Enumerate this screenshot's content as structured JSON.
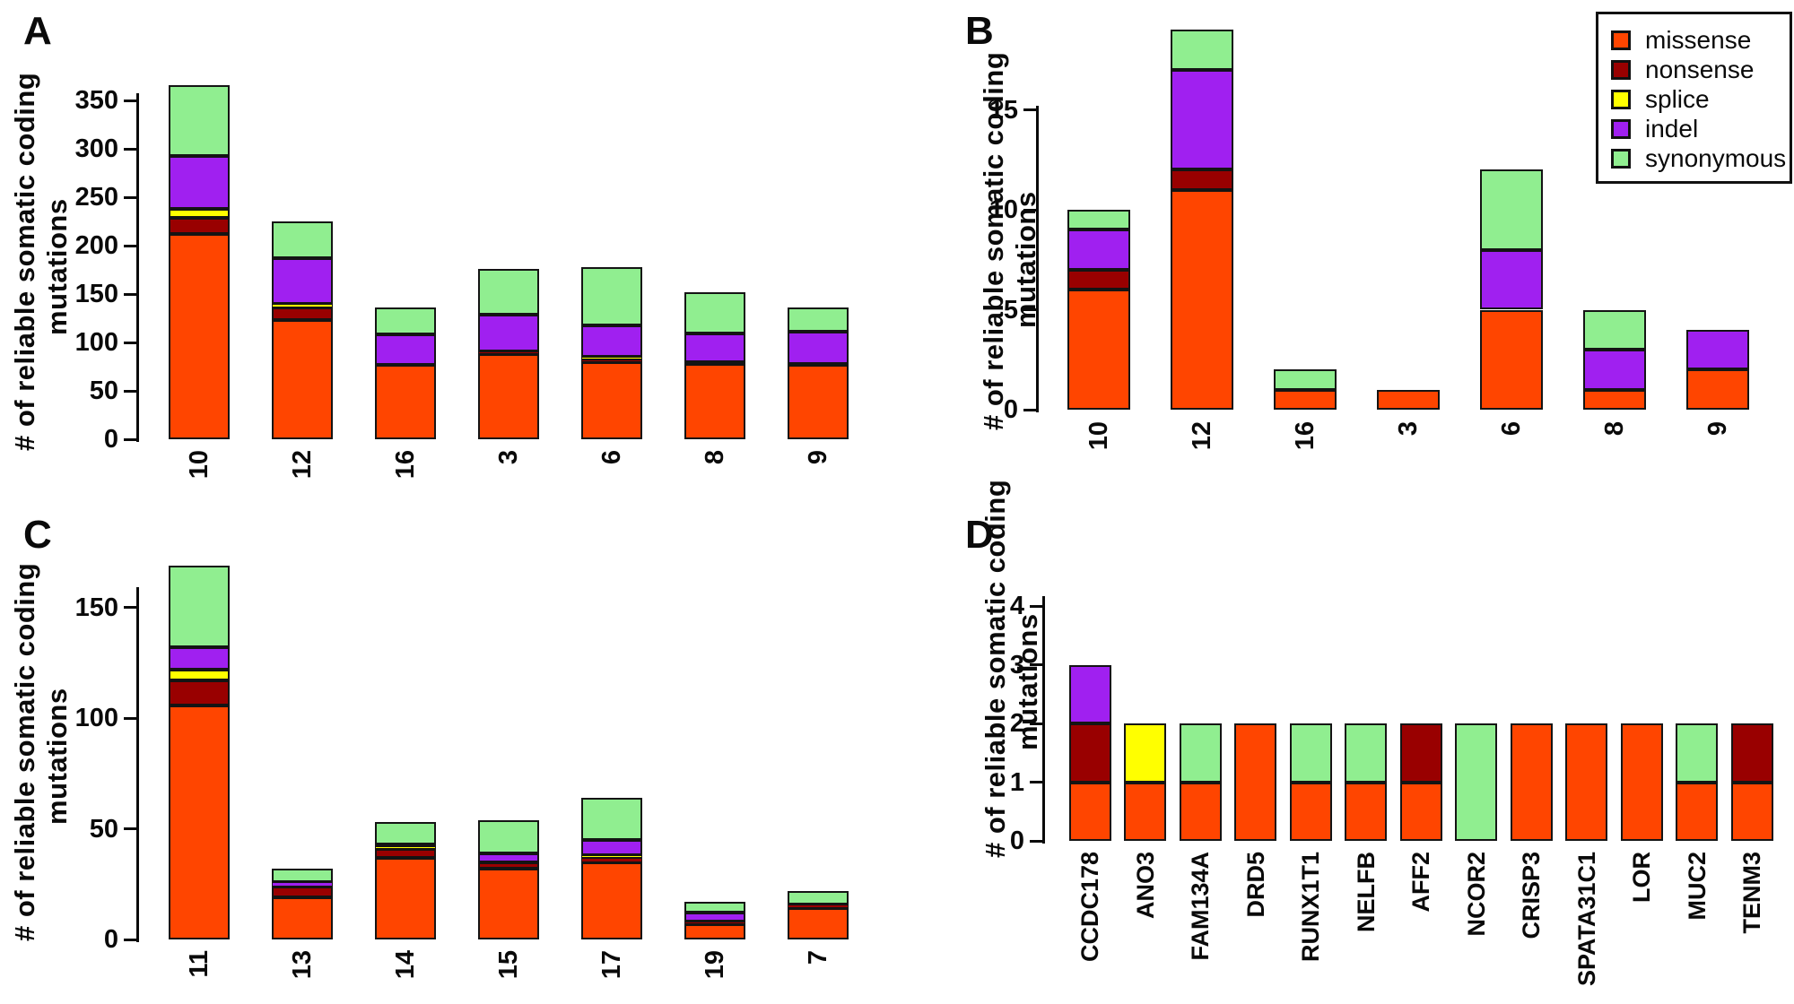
{
  "figure": {
    "background": "#ffffff"
  },
  "axis_title": {
    "line1": "# of reliable somatic coding",
    "line2": "mutations"
  },
  "legend": {
    "items": [
      {
        "label": "missense",
        "color": "#FF4500"
      },
      {
        "label": "nonsense",
        "color": "#990000"
      },
      {
        "label": "splice",
        "color": "#FFFF00"
      },
      {
        "label": "indel",
        "color": "#A020F0"
      },
      {
        "label": "synonymous",
        "color": "#90EE90"
      }
    ]
  },
  "chart_data": [
    {
      "panel": "A",
      "type": "bar",
      "stacked": true,
      "title": "",
      "xlabel": "",
      "ylabel": "# of reliable somatic coding mutations",
      "ylim": [
        0,
        350
      ],
      "yticks": [
        0,
        50,
        100,
        150,
        200,
        250,
        300,
        350
      ],
      "grid": false,
      "categories": [
        "10",
        "12",
        "16",
        "3",
        "6",
        "8",
        "9"
      ],
      "series": [
        {
          "name": "missense",
          "values": [
            212,
            123,
            77,
            88,
            80,
            78,
            77
          ]
        },
        {
          "name": "nonsense",
          "values": [
            17,
            13,
            0,
            3,
            2,
            2,
            1
          ]
        },
        {
          "name": "splice",
          "values": [
            9,
            4,
            0,
            0,
            3,
            0,
            0
          ]
        },
        {
          "name": "indel",
          "values": [
            55,
            47,
            31,
            38,
            33,
            29,
            33
          ]
        },
        {
          "name": "synonymous",
          "values": [
            73,
            38,
            28,
            47,
            60,
            43,
            25
          ]
        }
      ]
    },
    {
      "panel": "B",
      "type": "bar",
      "stacked": true,
      "title": "",
      "xlabel": "",
      "ylabel": "# of reliable somatic coding mutations",
      "ylim": [
        0,
        15
      ],
      "yticks": [
        0,
        5,
        10,
        15
      ],
      "grid": false,
      "categories": [
        "10",
        "12",
        "16",
        "3",
        "6",
        "8",
        "9"
      ],
      "series": [
        {
          "name": "missense",
          "values": [
            6,
            11,
            1,
            1,
            5,
            1,
            2
          ]
        },
        {
          "name": "nonsense",
          "values": [
            1,
            1,
            0,
            0,
            0,
            0,
            0
          ]
        },
        {
          "name": "splice",
          "values": [
            0,
            0,
            0,
            0,
            0,
            0,
            0
          ]
        },
        {
          "name": "indel",
          "values": [
            2,
            5,
            0,
            0,
            3,
            2,
            2
          ]
        },
        {
          "name": "synonymous",
          "values": [
            1,
            2,
            1,
            0,
            4,
            2,
            0
          ]
        }
      ]
    },
    {
      "panel": "C",
      "type": "bar",
      "stacked": true,
      "title": "",
      "xlabel": "",
      "ylabel": "# of reliable somatic coding mutations",
      "ylim": [
        0,
        150
      ],
      "yticks": [
        0,
        50,
        100,
        150
      ],
      "grid": false,
      "categories": [
        "11",
        "13",
        "14",
        "15",
        "17",
        "19",
        "7"
      ],
      "series": [
        {
          "name": "missense",
          "values": [
            106,
            19,
            37,
            32,
            35,
            7,
            14
          ]
        },
        {
          "name": "nonsense",
          "values": [
            11,
            5,
            4,
            3,
            2,
            1,
            2
          ]
        },
        {
          "name": "splice",
          "values": [
            5,
            0,
            1,
            0,
            1,
            0,
            0
          ]
        },
        {
          "name": "indel",
          "values": [
            10,
            2,
            1,
            4,
            7,
            4,
            0
          ]
        },
        {
          "name": "synonymous",
          "values": [
            37,
            6,
            10,
            15,
            19,
            5,
            6
          ]
        }
      ]
    },
    {
      "panel": "D",
      "type": "bar",
      "stacked": true,
      "title": "",
      "xlabel": "",
      "ylabel": "# of reliable somatic coding mutations",
      "ylim": [
        0,
        4
      ],
      "yticks": [
        0,
        1,
        2,
        3,
        4
      ],
      "grid": false,
      "categories": [
        "CCDC178",
        "ANO3",
        "FAM134A",
        "DRD5",
        "RUNX1T1",
        "NELFB",
        "AFF2",
        "NCOR2",
        "CRISP3",
        "SPATA31C1",
        "LOR",
        "MUC2",
        "TENM3"
      ],
      "series": [
        {
          "name": "missense",
          "values": [
            1,
            1,
            1,
            2,
            1,
            1,
            1,
            0,
            2,
            2,
            2,
            1,
            1
          ]
        },
        {
          "name": "nonsense",
          "values": [
            1,
            0,
            0,
            0,
            0,
            0,
            1,
            0,
            0,
            0,
            0,
            0,
            1
          ]
        },
        {
          "name": "splice",
          "values": [
            0,
            1,
            0,
            0,
            0,
            0,
            0,
            0,
            0,
            0,
            0,
            0,
            0
          ]
        },
        {
          "name": "indel",
          "values": [
            1,
            0,
            0,
            0,
            0,
            0,
            0,
            0,
            0,
            0,
            0,
            0,
            0
          ]
        },
        {
          "name": "synonymous",
          "values": [
            0,
            0,
            1,
            0,
            1,
            1,
            0,
            2,
            0,
            0,
            0,
            1,
            0
          ]
        }
      ]
    }
  ]
}
